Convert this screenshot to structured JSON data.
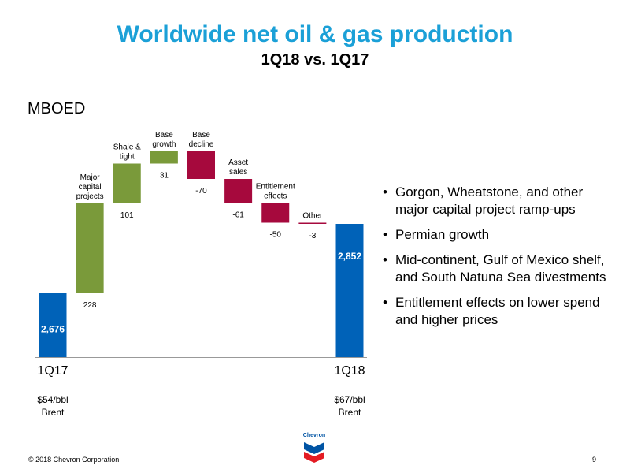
{
  "slide": {
    "title": "Worldwide net oil & gas production",
    "subtitle": "1Q18 vs. 1Q17",
    "unit_label": "MBOED",
    "footer": "© 2018 Chevron Corporation",
    "page_number": "9",
    "logo_text": "Chevron",
    "bullets": [
      "Gorgon, Wheatstone, and other major capital project ramp-ups",
      "Permian growth",
      "Mid-continent, Gulf of Mexico shelf, and South Natuna Sea divestments",
      "Entitlement effects on lower spend and higher prices"
    ]
  },
  "colors": {
    "title": "#1ba0d7",
    "total": "#0062b8",
    "increase": "#7a9a3a",
    "decrease": "#a6093d",
    "logo_blue": "#0054a4",
    "logo_red": "#e31b23"
  },
  "chart_data": {
    "type": "bar",
    "subtype": "waterfall",
    "ylabel": "MBOED",
    "steps": [
      {
        "label": "",
        "value": 2676,
        "kind": "total",
        "value_label": "2,676",
        "axis_label": "1Q17",
        "note": [
          "$54/bbl",
          "Brent"
        ]
      },
      {
        "label": "Major capital projects",
        "value": 228,
        "kind": "increase",
        "value_label": "228"
      },
      {
        "label": "Shale & tight",
        "value": 101,
        "kind": "increase",
        "value_label": "101"
      },
      {
        "label": "Base growth",
        "value": 31,
        "kind": "increase",
        "value_label": "31"
      },
      {
        "label": "Base decline",
        "value": -70,
        "kind": "decrease",
        "value_label": "-70"
      },
      {
        "label": "Asset sales",
        "value": -61,
        "kind": "decrease",
        "value_label": "-61"
      },
      {
        "label": "Entitlement effects",
        "value": -50,
        "kind": "decrease",
        "value_label": "-50"
      },
      {
        "label": "Other",
        "value": -3,
        "kind": "decrease",
        "value_label": "-3"
      },
      {
        "label": "",
        "value": 2852,
        "kind": "total",
        "value_label": "2,852",
        "axis_label": "1Q18",
        "note": [
          "$67/bbl",
          "Brent"
        ]
      }
    ]
  }
}
